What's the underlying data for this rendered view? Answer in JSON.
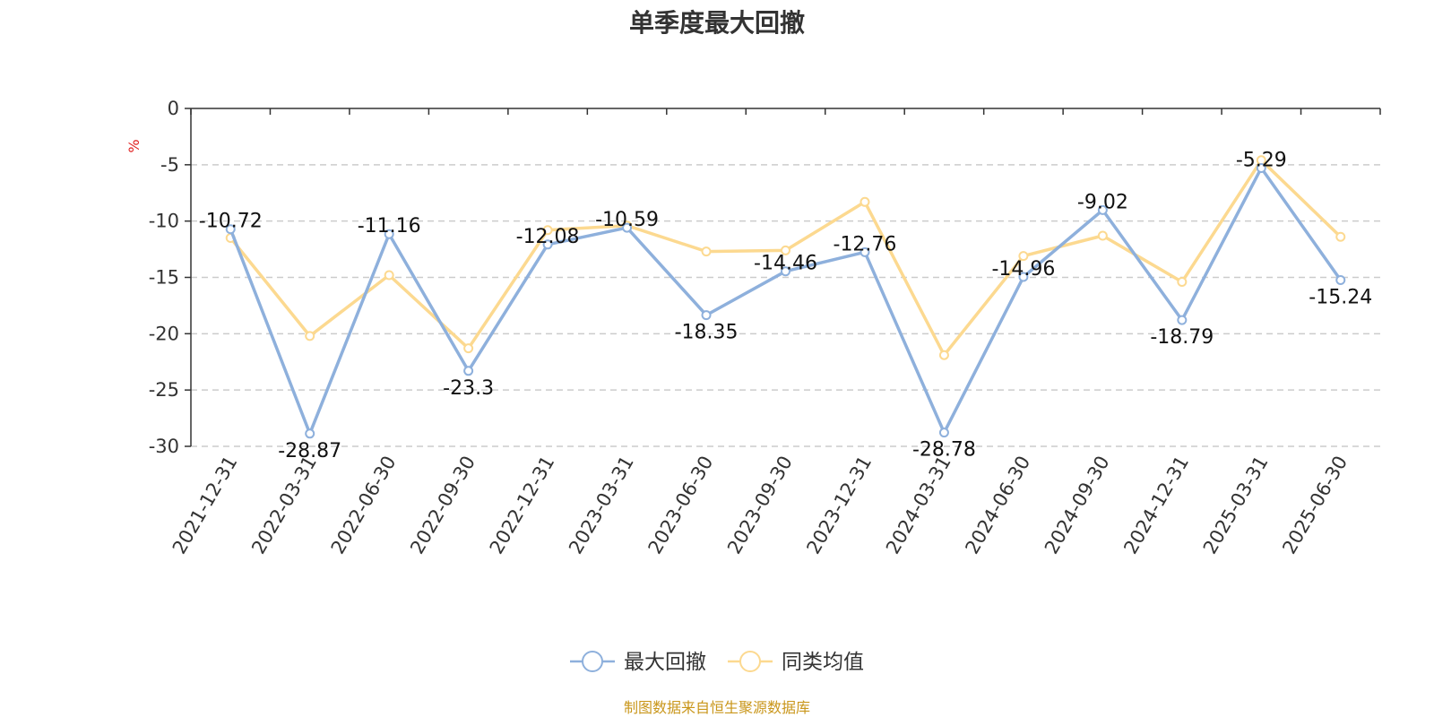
{
  "chart_data": {
    "type": "line",
    "title": "单季度最大回撤",
    "ylabel": "%",
    "ylim": [
      -30,
      0
    ],
    "yticks": [
      0,
      -5,
      -10,
      -15,
      -20,
      -25,
      -30
    ],
    "categories": [
      "2021-12-31",
      "2022-03-31",
      "2022-06-30",
      "2022-09-30",
      "2022-12-31",
      "2023-03-31",
      "2023-06-30",
      "2023-09-30",
      "2023-12-31",
      "2024-03-31",
      "2024-06-30",
      "2024-09-30",
      "2024-12-31",
      "2025-03-31",
      "2025-06-30"
    ],
    "series": [
      {
        "name": "最大回撤",
        "color": "#8eb0dc",
        "values": [
          -10.72,
          -28.87,
          -11.16,
          -23.3,
          -12.08,
          -10.59,
          -18.35,
          -14.46,
          -12.76,
          -28.78,
          -14.96,
          -9.02,
          -18.79,
          -5.29,
          -15.24
        ],
        "labels": [
          "-10.72",
          "-28.87",
          "-11.16",
          "-23.3",
          "-12.08",
          "-10.59",
          "-18.35",
          "-14.46",
          "-12.76",
          "-28.78",
          "-14.96",
          "-9.02",
          "-18.79",
          "-5.29",
          "-15.24"
        ]
      },
      {
        "name": "同类均值",
        "color": "#fcd990",
        "values": [
          -11.5,
          -20.2,
          -14.8,
          -21.3,
          -10.8,
          -10.4,
          -12.7,
          -12.6,
          -8.3,
          -21.9,
          -13.1,
          -11.3,
          -15.4,
          -4.6,
          -11.4
        ]
      }
    ],
    "grid": "horizontal-dashed",
    "legend_position": "bottom"
  },
  "source_note": "制图数据来自恒生聚源数据库"
}
